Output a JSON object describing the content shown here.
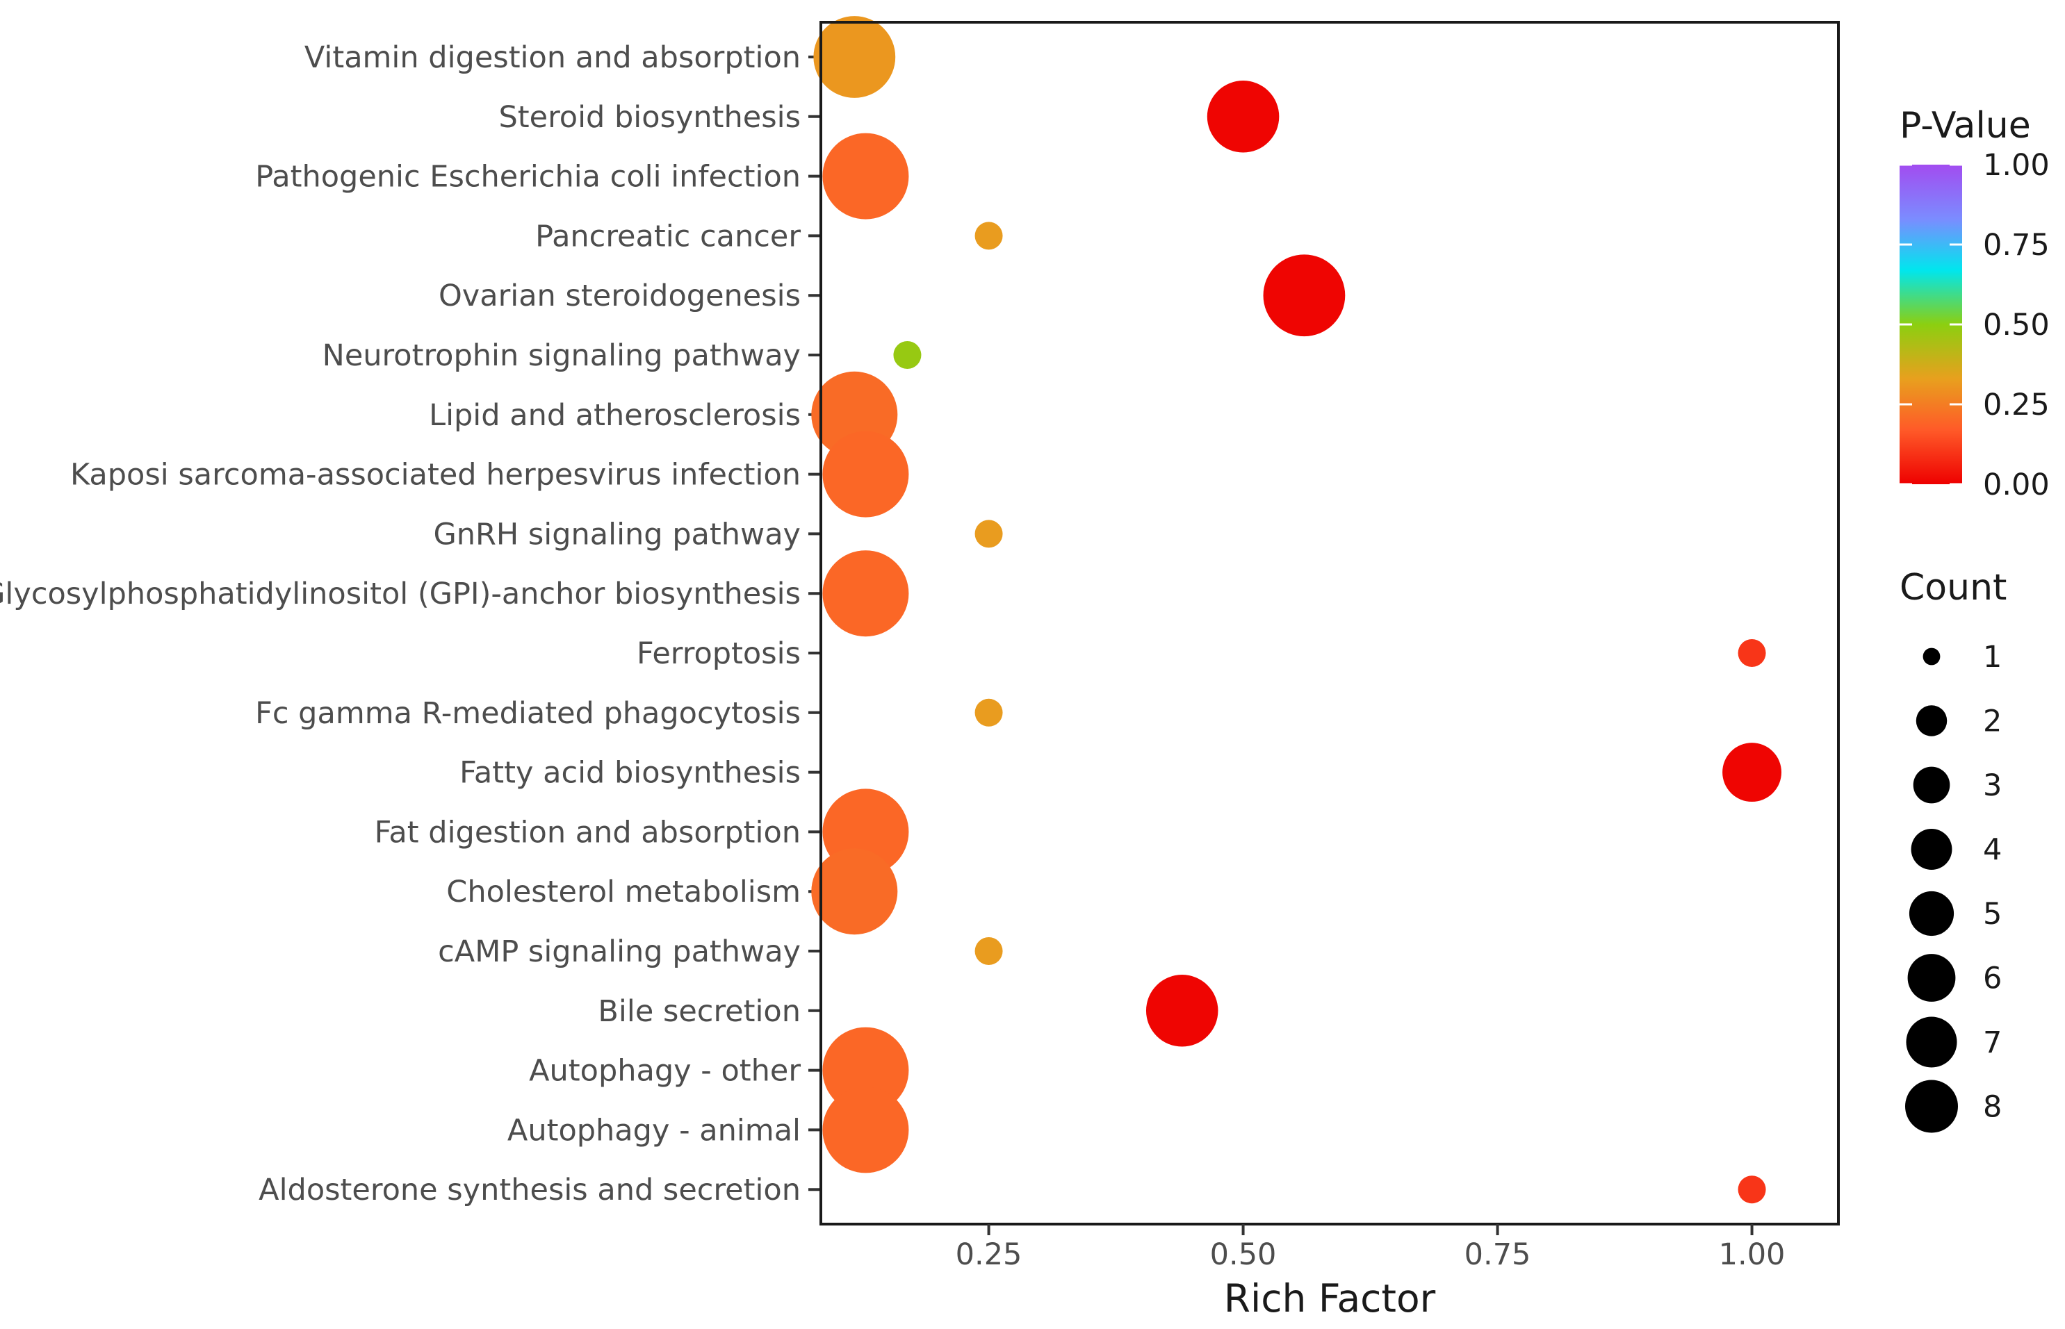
{
  "chart_data": {
    "type": "scatter",
    "xlabel": "Rich Factor",
    "xlim": [
      0.085,
      1.085
    ],
    "xticks": [
      0.25,
      0.5,
      0.75,
      1.0
    ],
    "xtick_labels": [
      "0.25",
      "0.50",
      "0.75",
      "1.00"
    ],
    "categories": [
      "Vitamin digestion and absorption",
      "Steroid biosynthesis",
      "Pathogenic Escherichia coli infection",
      "Pancreatic cancer",
      "Ovarian steroidogenesis",
      "Neurotrophin signaling pathway",
      "Lipid and atherosclerosis",
      "Kaposi sarcoma-associated herpesvirus infection",
      "GnRH signaling pathway",
      "Glycosylphosphatidylinositol (GPI)-anchor biosynthesis",
      "Ferroptosis",
      "Fc gamma R-mediated phagocytosis",
      "Fatty acid biosynthesis",
      "Fat digestion and absorption",
      "Cholesterol metabolism",
      "cAMP signaling pathway",
      "Bile secretion",
      "Autophagy - other",
      "Autophagy - animal",
      "Aldosterone synthesis and secretion"
    ],
    "points": [
      {
        "category": "Vitamin digestion and absorption",
        "rich_factor": 0.118,
        "count": 7,
        "p_value": 0.31
      },
      {
        "category": "Steroid biosynthesis",
        "rich_factor": 0.5,
        "count": 5,
        "p_value": 0.01
      },
      {
        "category": "Pathogenic Escherichia coli infection",
        "rich_factor": 0.129,
        "count": 8,
        "p_value": 0.2
      },
      {
        "category": "Pancreatic cancer",
        "rich_factor": 0.25,
        "count": 1,
        "p_value": 0.32
      },
      {
        "category": "Ovarian steroidogenesis",
        "rich_factor": 0.56,
        "count": 7,
        "p_value": 0.01
      },
      {
        "category": "Neurotrophin signaling pathway",
        "rich_factor": 0.17,
        "count": 1,
        "p_value": 0.48
      },
      {
        "category": "Lipid and atherosclerosis",
        "rich_factor": 0.118,
        "count": 8,
        "p_value": 0.21
      },
      {
        "category": "Kaposi sarcoma-associated herpesvirus infection",
        "rich_factor": 0.129,
        "count": 8,
        "p_value": 0.2
      },
      {
        "category": "GnRH signaling pathway",
        "rich_factor": 0.25,
        "count": 1,
        "p_value": 0.32
      },
      {
        "category": "Glycosylphosphatidylinositol (GPI)-anchor biosynthesis",
        "rich_factor": 0.129,
        "count": 8,
        "p_value": 0.2
      },
      {
        "category": "Ferroptosis",
        "rich_factor": 1.0,
        "count": 1,
        "p_value": 0.1
      },
      {
        "category": "Fc gamma R-mediated phagocytosis",
        "rich_factor": 0.25,
        "count": 1,
        "p_value": 0.32
      },
      {
        "category": "Fatty acid biosynthesis",
        "rich_factor": 1.0,
        "count": 3,
        "p_value": 0.01
      },
      {
        "category": "Fat digestion and absorption",
        "rich_factor": 0.129,
        "count": 8,
        "p_value": 0.2
      },
      {
        "category": "Cholesterol metabolism",
        "rich_factor": 0.118,
        "count": 8,
        "p_value": 0.21
      },
      {
        "category": "cAMP signaling pathway",
        "rich_factor": 0.25,
        "count": 1,
        "p_value": 0.32
      },
      {
        "category": "Bile secretion",
        "rich_factor": 0.44,
        "count": 5,
        "p_value": 0.01
      },
      {
        "category": "Autophagy - other",
        "rich_factor": 0.129,
        "count": 8,
        "p_value": 0.2
      },
      {
        "category": "Autophagy - animal",
        "rich_factor": 0.129,
        "count": 8,
        "p_value": 0.2
      },
      {
        "category": "Aldosterone synthesis and secretion",
        "rich_factor": 1.0,
        "count": 1,
        "p_value": 0.1
      }
    ],
    "color_legend": {
      "title": "P-Value",
      "range": [
        0,
        1
      ],
      "ticks": [
        1.0,
        0.75,
        0.5,
        0.25,
        0.0
      ],
      "tick_labels": [
        "1.00",
        "0.75",
        "0.50",
        "0.25",
        "0.00"
      ],
      "colors": [
        "#ee0000",
        "#ff5a28",
        "#e8a01e",
        "#8ccf10",
        "#00e6ee",
        "#7b8cff",
        "#a24cf0"
      ]
    },
    "size_legend": {
      "title": "Count",
      "values": [
        1,
        2,
        3,
        4,
        5,
        6,
        7,
        8
      ],
      "labels": [
        "1",
        "2",
        "3",
        "4",
        "5",
        "6",
        "7",
        "8"
      ]
    },
    "grid": false,
    "legend_position": "right"
  }
}
